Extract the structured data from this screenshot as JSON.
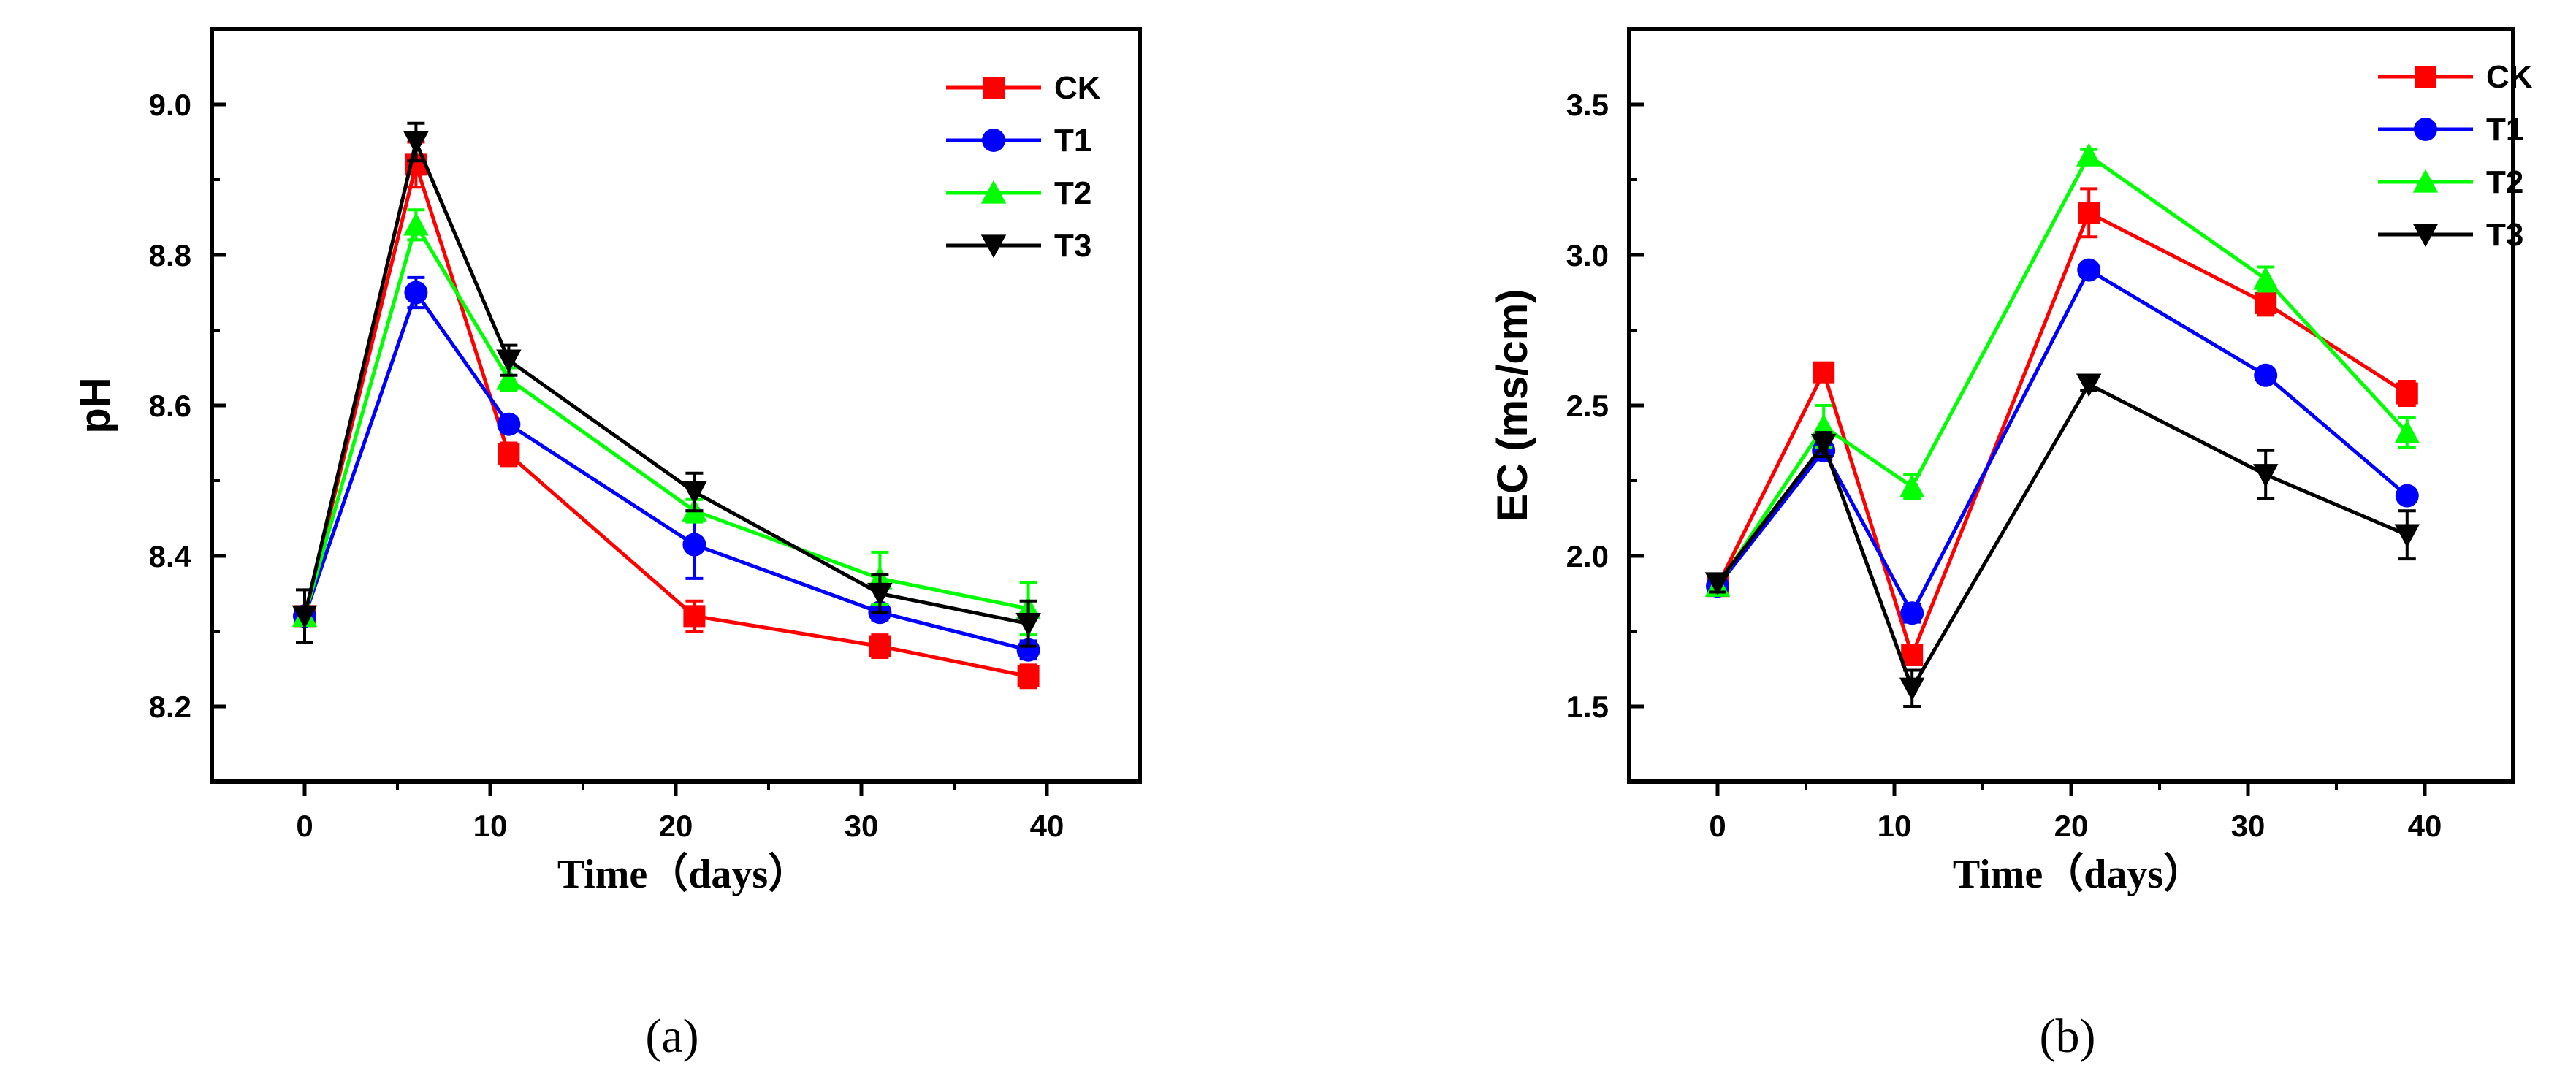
{
  "chart_data": [
    {
      "type": "line",
      "panel_label": "(a)",
      "xlabel": "Time（days）",
      "ylabel": "pH",
      "xlim": [
        -5,
        45
      ],
      "ylim": [
        8.1,
        9.1
      ],
      "xticks": [
        0,
        10,
        20,
        30,
        40
      ],
      "yticks": [
        8.2,
        8.4,
        8.6,
        8.8,
        9.0
      ],
      "xtick_labels": [
        "0",
        "10",
        "20",
        "30",
        "40"
      ],
      "ytick_labels": [
        "8.2",
        "8.4",
        "8.6",
        "8.8",
        "9.0"
      ],
      "x": [
        0,
        6,
        11,
        21,
        31,
        39
      ],
      "legend_position": "top-right",
      "series": [
        {
          "name": "CK",
          "color": "#ff0000",
          "marker": "square",
          "values": [
            8.32,
            8.92,
            8.535,
            8.32,
            8.28,
            8.24
          ],
          "errors": [
            0.012,
            0.03,
            0.015,
            0.02,
            0.015,
            0.015
          ]
        },
        {
          "name": "T1",
          "color": "#0000ff",
          "marker": "circle",
          "values": [
            8.32,
            8.75,
            8.575,
            8.415,
            8.325,
            8.275
          ],
          "errors": [
            0.01,
            0.02,
            0.01,
            0.045,
            0.01,
            0.012
          ]
        },
        {
          "name": "T2",
          "color": "#00ff00",
          "marker": "triangle-up",
          "values": [
            8.32,
            8.84,
            8.635,
            8.46,
            8.37,
            8.33
          ],
          "errors": [
            0.01,
            0.02,
            0.015,
            0.015,
            0.035,
            0.035
          ]
        },
        {
          "name": "T3",
          "color": "#000000",
          "marker": "triangle-down",
          "values": [
            8.32,
            8.95,
            8.66,
            8.485,
            8.35,
            8.31
          ],
          "errors": [
            0.035,
            0.025,
            0.02,
            0.025,
            0.025,
            0.03
          ]
        }
      ]
    },
    {
      "type": "line",
      "panel_label": "(b)",
      "xlabel": "Time（days）",
      "ylabel": "EC (ms/cm)",
      "xlim": [
        -5,
        45
      ],
      "ylim": [
        1.25,
        3.75
      ],
      "xticks": [
        0,
        10,
        20,
        30,
        40
      ],
      "yticks": [
        1.5,
        2.0,
        2.5,
        3.0,
        3.5
      ],
      "xtick_labels": [
        "0",
        "10",
        "20",
        "30",
        "40"
      ],
      "ytick_labels": [
        "1.5",
        "2.0",
        "2.5",
        "3.0",
        "3.5"
      ],
      "x": [
        0,
        6,
        11,
        21,
        31,
        39
      ],
      "legend_position": "top-right",
      "series": [
        {
          "name": "CK",
          "color": "#ff0000",
          "marker": "square",
          "values": [
            1.9,
            2.61,
            1.67,
            3.14,
            2.84,
            2.54
          ],
          "errors": [
            0.03,
            0.03,
            0.03,
            0.08,
            0.04,
            0.04
          ]
        },
        {
          "name": "T1",
          "color": "#0000ff",
          "marker": "circle",
          "values": [
            1.9,
            2.35,
            1.81,
            2.95,
            2.6,
            2.2
          ],
          "errors": [
            0.03,
            0.03,
            0.03,
            0.02,
            0.02,
            0.02
          ]
        },
        {
          "name": "T2",
          "color": "#00ff00",
          "marker": "triangle-up",
          "values": [
            1.9,
            2.43,
            2.23,
            3.33,
            2.92,
            2.41
          ],
          "errors": [
            0.03,
            0.07,
            0.04,
            0.02,
            0.04,
            0.05
          ]
        },
        {
          "name": "T3",
          "color": "#000000",
          "marker": "triangle-down",
          "values": [
            1.91,
            2.37,
            1.56,
            2.57,
            2.27,
            2.07
          ],
          "errors": [
            0.03,
            0.04,
            0.06,
            0.02,
            0.08,
            0.08
          ]
        }
      ]
    }
  ]
}
